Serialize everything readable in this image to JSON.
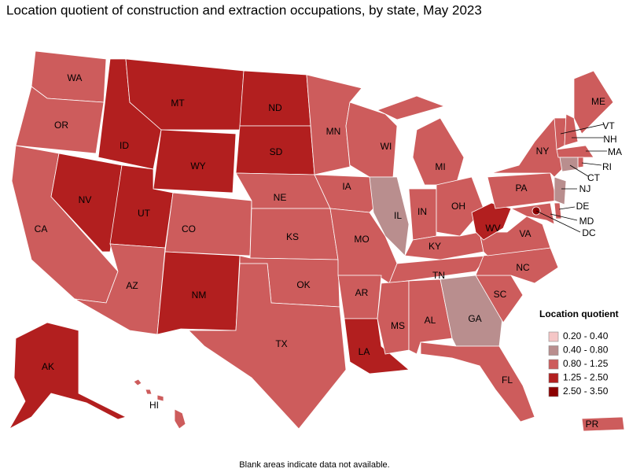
{
  "title": "Location quotient of construction and extraction occupations, by state, May 2023",
  "legend": {
    "title": "Location quotient",
    "items": [
      {
        "label": "0.20 - 0.40",
        "color": "#f5c6c6"
      },
      {
        "label": "0.40 - 0.80",
        "color": "#b98e8e"
      },
      {
        "label": "0.80 - 1.25",
        "color": "#cd5c5c"
      },
      {
        "label": "1.25 - 2.50",
        "color": "#b21f1f"
      },
      {
        "label": "2.50 - 3.50",
        "color": "#8b0000"
      }
    ]
  },
  "states": [
    {
      "abbr": "WA",
      "bin": 2
    },
    {
      "abbr": "OR",
      "bin": 2
    },
    {
      "abbr": "CA",
      "bin": 2
    },
    {
      "abbr": "NV",
      "bin": 3
    },
    {
      "abbr": "ID",
      "bin": 3
    },
    {
      "abbr": "MT",
      "bin": 3
    },
    {
      "abbr": "WY",
      "bin": 3
    },
    {
      "abbr": "UT",
      "bin": 3
    },
    {
      "abbr": "AZ",
      "bin": 2
    },
    {
      "abbr": "CO",
      "bin": 2
    },
    {
      "abbr": "NM",
      "bin": 3
    },
    {
      "abbr": "ND",
      "bin": 3
    },
    {
      "abbr": "SD",
      "bin": 3
    },
    {
      "abbr": "NE",
      "bin": 2
    },
    {
      "abbr": "KS",
      "bin": 2
    },
    {
      "abbr": "OK",
      "bin": 2
    },
    {
      "abbr": "TX",
      "bin": 2
    },
    {
      "abbr": "MN",
      "bin": 2
    },
    {
      "abbr": "IA",
      "bin": 2
    },
    {
      "abbr": "MO",
      "bin": 2
    },
    {
      "abbr": "AR",
      "bin": 2
    },
    {
      "abbr": "LA",
      "bin": 3
    },
    {
      "abbr": "WI",
      "bin": 2
    },
    {
      "abbr": "IL",
      "bin": 1
    },
    {
      "abbr": "MI",
      "bin": 2
    },
    {
      "abbr": "IN",
      "bin": 2
    },
    {
      "abbr": "OH",
      "bin": 2
    },
    {
      "abbr": "KY",
      "bin": 2
    },
    {
      "abbr": "TN",
      "bin": 2
    },
    {
      "abbr": "MS",
      "bin": 2
    },
    {
      "abbr": "AL",
      "bin": 2
    },
    {
      "abbr": "GA",
      "bin": 1
    },
    {
      "abbr": "FL",
      "bin": 2
    },
    {
      "abbr": "SC",
      "bin": 2
    },
    {
      "abbr": "NC",
      "bin": 2
    },
    {
      "abbr": "VA",
      "bin": 2
    },
    {
      "abbr": "WV",
      "bin": 3
    },
    {
      "abbr": "PA",
      "bin": 2
    },
    {
      "abbr": "NY",
      "bin": 2
    },
    {
      "abbr": "ME",
      "bin": 2
    },
    {
      "abbr": "VT",
      "bin": 2
    },
    {
      "abbr": "NH",
      "bin": 2
    },
    {
      "abbr": "MA",
      "bin": 2
    },
    {
      "abbr": "RI",
      "bin": 2
    },
    {
      "abbr": "CT",
      "bin": 1
    },
    {
      "abbr": "NJ",
      "bin": 1
    },
    {
      "abbr": "DE",
      "bin": 2
    },
    {
      "abbr": "MD",
      "bin": 2
    },
    {
      "abbr": "DC",
      "bin": 4
    },
    {
      "abbr": "AK",
      "bin": 3
    },
    {
      "abbr": "HI",
      "bin": 2
    },
    {
      "abbr": "PR",
      "bin": 2
    }
  ],
  "footnote": "Blank areas indicate data not available."
}
